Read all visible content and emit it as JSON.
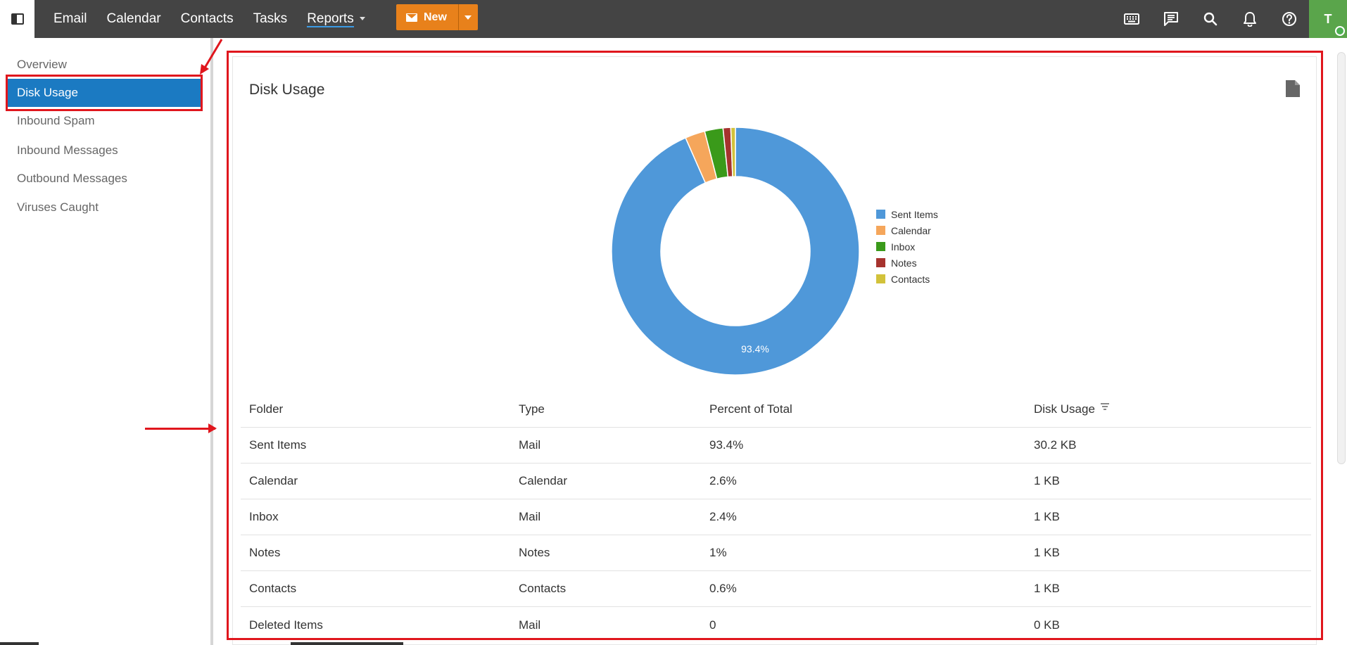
{
  "topbar": {
    "nav": [
      {
        "label": "Email"
      },
      {
        "label": "Calendar"
      },
      {
        "label": "Contacts"
      },
      {
        "label": "Tasks"
      },
      {
        "label": "Reports"
      }
    ],
    "new_label": "New",
    "avatar_initial": "T",
    "icons": [
      "keyboard-icon",
      "chat-icon",
      "search-icon",
      "bell-icon",
      "help-icon"
    ]
  },
  "sidebar": {
    "items": [
      {
        "label": "Overview"
      },
      {
        "label": "Disk Usage"
      },
      {
        "label": "Inbound Spam"
      },
      {
        "label": "Inbound Messages"
      },
      {
        "label": "Outbound Messages"
      },
      {
        "label": "Viruses Caught"
      }
    ],
    "active_index": 1
  },
  "main": {
    "title": "Disk Usage",
    "table": {
      "headers": [
        "Folder",
        "Type",
        "Percent of Total",
        "Disk Usage"
      ],
      "rows": [
        [
          "Sent Items",
          "Mail",
          "93.4%",
          "30.2 KB"
        ],
        [
          "Calendar",
          "Calendar",
          "2.6%",
          "1 KB"
        ],
        [
          "Inbox",
          "Mail",
          "2.4%",
          "1 KB"
        ],
        [
          "Notes",
          "Notes",
          "1%",
          "1 KB"
        ],
        [
          "Contacts",
          "Contacts",
          "0.6%",
          "1 KB"
        ],
        [
          "Deleted Items",
          "Mail",
          "0",
          "0 KB"
        ]
      ]
    }
  },
  "chart_data": {
    "type": "pie",
    "donut": true,
    "categories": [
      "Sent Items",
      "Calendar",
      "Inbox",
      "Notes",
      "Contacts"
    ],
    "values": [
      93.4,
      2.6,
      2.4,
      1.0,
      0.6
    ],
    "colors": [
      "#4f98d9",
      "#f5a65b",
      "#3a9a1a",
      "#a6332e",
      "#d2c23a"
    ],
    "data_labels": [
      "93.4%"
    ],
    "legend_position": "right"
  },
  "colors": {
    "topbar": "#444444",
    "accent": "#1b7ac2",
    "new_button": "#e8811b",
    "annotation": "#e0161d"
  }
}
